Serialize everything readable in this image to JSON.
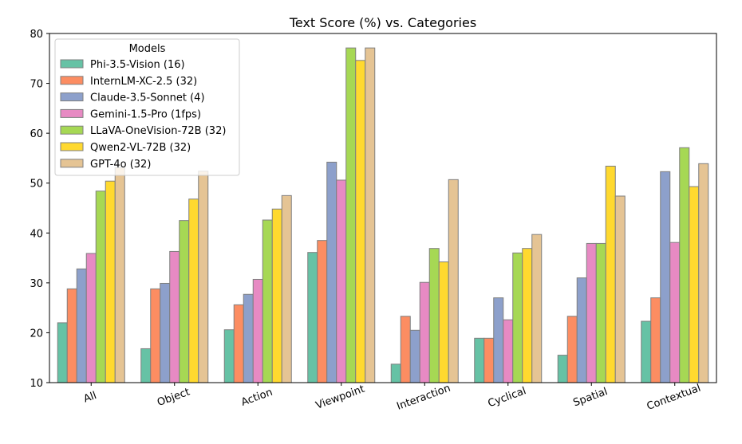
{
  "chart_data": {
    "type": "bar",
    "title": "Text Score (%) vs. Categories",
    "xlabel": "",
    "ylabel": "",
    "ylim": [
      10,
      80
    ],
    "yticks": [
      10,
      20,
      30,
      40,
      50,
      60,
      70,
      80
    ],
    "grid": false,
    "legend": {
      "title": "Models",
      "placement": "top-left"
    },
    "categories": [
      "All",
      "Object",
      "Action",
      "Viewpoint",
      "Interaction",
      "Cyclical",
      "Spatial",
      "Contextual"
    ],
    "series": [
      {
        "name": "Phi-3.5-Vision (16)",
        "color": "#66c2a5",
        "values": [
          22.0,
          16.8,
          20.6,
          36.1,
          13.7,
          18.9,
          15.5,
          22.3
        ]
      },
      {
        "name": "InternLM-XC-2.5 (32)",
        "color": "#fc8d62",
        "values": [
          28.8,
          28.8,
          25.6,
          38.5,
          23.3,
          18.9,
          23.3,
          27.0
        ]
      },
      {
        "name": "Claude-3.5-Sonnet (4)",
        "color": "#8da0cb",
        "values": [
          32.8,
          29.9,
          27.7,
          54.2,
          20.5,
          27.0,
          31.0,
          52.3
        ]
      },
      {
        "name": "Gemini-1.5-Pro (1fps)",
        "color": "#e78ac3",
        "values": [
          35.9,
          36.3,
          30.7,
          50.6,
          30.1,
          22.6,
          37.9,
          38.1
        ]
      },
      {
        "name": "LLaVA-OneVision-72B (32)",
        "color": "#a6d854",
        "values": [
          48.4,
          42.5,
          42.6,
          77.1,
          36.9,
          36.0,
          37.9,
          57.1
        ]
      },
      {
        "name": "Qwen2-VL-72B (32)",
        "color": "#ffd92f",
        "values": [
          50.4,
          46.8,
          44.8,
          74.6,
          34.2,
          36.9,
          53.4,
          49.3
        ]
      },
      {
        "name": "GPT-4o (32)",
        "color": "#e5c494",
        "values": [
          53.1,
          52.4,
          47.5,
          77.1,
          50.7,
          39.7,
          47.4,
          53.9
        ]
      }
    ]
  }
}
